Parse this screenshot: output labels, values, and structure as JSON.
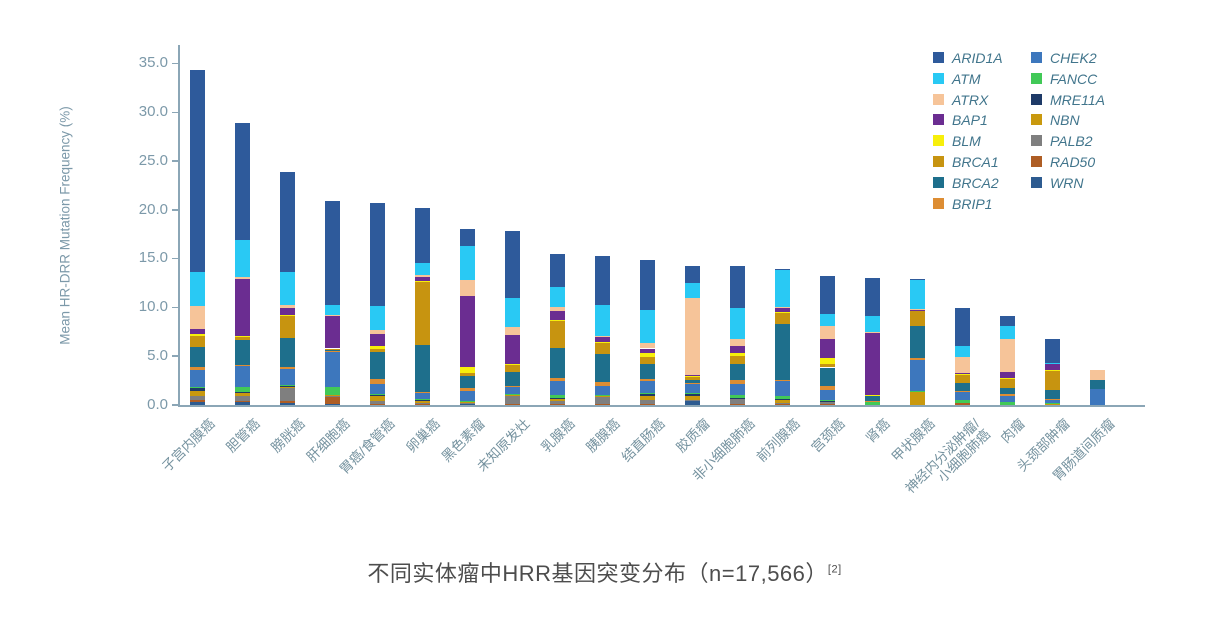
{
  "caption": {
    "text": "不同实体瘤中HRR基因突变分布（n=17,566）",
    "citation": "[2]"
  },
  "axis": {
    "ylabel": "Mean HR-DRR Mutation Frequency (%)",
    "ytick_labels": [
      "0.0",
      "5.0",
      "10.0",
      "15.0",
      "20.0",
      "25.0",
      "30.0",
      "35.0"
    ]
  },
  "colors": {
    "axis_line": "#8ba6b6",
    "tick_text": "#7c99a9",
    "category_text": "#75929f",
    "legend_text": "#41758c",
    "caption_text": "#4d4d4d"
  },
  "chart_data": {
    "type": "bar",
    "stacked": true,
    "title": "不同实体瘤中HRR基因突变分布（n=17,566）[2]",
    "xlabel": "",
    "ylabel": "Mean HR-DRR Mutation Frequency (%)",
    "ylim": [
      0,
      35
    ],
    "yticks": [
      0,
      5,
      10,
      15,
      20,
      25,
      30,
      35
    ],
    "grid": false,
    "legend_position": "top-right",
    "legend_columns": [
      [
        "ARID1A",
        "ATM",
        "ATRX",
        "BAP1",
        "BLM",
        "BRCA1",
        "BRCA2",
        "BRIP1"
      ],
      [
        "CHEK2",
        "FANCC",
        "MRE11A",
        "NBN",
        "PALB2",
        "RAD50",
        "WRN"
      ]
    ],
    "genes": [
      {
        "name": "ARID1A",
        "color": "#2e5a9b"
      },
      {
        "name": "ATM",
        "color": "#29c9f4"
      },
      {
        "name": "ATRX",
        "color": "#f6c499"
      },
      {
        "name": "BAP1",
        "color": "#6b2d91"
      },
      {
        "name": "BLM",
        "color": "#f7ef0b"
      },
      {
        "name": "BRCA1",
        "color": "#c79410"
      },
      {
        "name": "BRCA2",
        "color": "#1e6f8c"
      },
      {
        "name": "BRIP1",
        "color": "#dd8d33"
      },
      {
        "name": "CHEK2",
        "color": "#3d77bd"
      },
      {
        "name": "FANCC",
        "color": "#41c957"
      },
      {
        "name": "MRE11A",
        "color": "#1e3a67"
      },
      {
        "name": "NBN",
        "color": "#c9990e"
      },
      {
        "name": "PALB2",
        "color": "#7f7f7f"
      },
      {
        "name": "RAD50",
        "color": "#ae5d24"
      },
      {
        "name": "WRN",
        "color": "#2d5b90"
      }
    ],
    "categories": [
      "子宫内膜癌",
      "胆管癌",
      "膀胱癌",
      "肝细胞癌",
      "胃癌/食管癌",
      "卵巢癌",
      "黑色素瘤",
      "未知原发灶",
      "乳腺癌",
      "胰腺癌",
      "结直肠癌",
      "胶质瘤",
      "非小细胞肺癌",
      "前列腺癌",
      "宫颈癌",
      "肾癌",
      "甲状腺癌",
      "神经内分泌肿瘤/\n小细胞肺癌",
      "肉瘤",
      "头颈部肿瘤",
      "胃肠道间质瘤"
    ],
    "totals": [
      34.3,
      28.9,
      23.9,
      20.9,
      20.7,
      20.2,
      18.0,
      17.9,
      15.5,
      15.3,
      14.9,
      14.3,
      14.2,
      14.0,
      13.2,
      13.0,
      12.9,
      9.9,
      9.1,
      6.7,
      3.6
    ],
    "series": [
      {
        "name": "ARID1A",
        "values": [
          20.7,
          12.0,
          10.3,
          10.7,
          10.6,
          5.6,
          1.7,
          6.9,
          3.4,
          5.0,
          5.1,
          1.8,
          4.3,
          0.05,
          3.9,
          3.9,
          0.05,
          3.85,
          1.0,
          2.4,
          0
        ]
      },
      {
        "name": "ATM",
        "values": [
          3.5,
          3.8,
          3.4,
          1.0,
          2.5,
          1.3,
          3.5,
          3.0,
          2.0,
          3.2,
          3.4,
          1.5,
          3.2,
          3.9,
          1.2,
          1.7,
          3.0,
          1.2,
          1.3,
          0.05,
          0
        ]
      },
      {
        "name": "ATRX",
        "values": [
          2.3,
          0.25,
          0.3,
          0.15,
          0.4,
          0.15,
          1.7,
          0.8,
          0.5,
          0.1,
          0.6,
          7.9,
          0.7,
          0.1,
          1.4,
          0.1,
          0.1,
          1.65,
          3.45,
          0.05,
          1.05
        ]
      },
      {
        "name": "BAP1",
        "values": [
          0.6,
          5.8,
          0.7,
          3.3,
          1.2,
          0.45,
          7.2,
          3.0,
          0.85,
          0.55,
          0.45,
          0.1,
          0.75,
          0.4,
          1.9,
          6.3,
          0.1,
          0.05,
          0.6,
          0.65,
          0
        ]
      },
      {
        "name": "BLM",
        "values": [
          0.15,
          0.1,
          0.1,
          0,
          0.3,
          0.05,
          0.7,
          0.1,
          0.05,
          0.05,
          0.4,
          0.05,
          0.25,
          0.05,
          0.65,
          0.05,
          0.05,
          0.05,
          0.05,
          0.05,
          0
        ]
      },
      {
        "name": "BRCA1",
        "values": [
          1.1,
          0.35,
          2.3,
          0.15,
          0.3,
          6.5,
          0.3,
          0.7,
          2.8,
          1.2,
          0.7,
          0.4,
          0.8,
          1.2,
          0.35,
          0.05,
          1.5,
          0.9,
          1.0,
          2.0,
          0
        ]
      },
      {
        "name": "BRCA2",
        "values": [
          2.1,
          2.5,
          2.9,
          0.15,
          2.8,
          4.8,
          1.2,
          1.4,
          3.1,
          2.8,
          1.55,
          0.25,
          1.7,
          5.7,
          1.9,
          0.5,
          3.3,
          0.85,
          0.6,
          0.9,
          0.9
        ]
      },
      {
        "name": "BRIP1",
        "values": [
          0.3,
          0.1,
          0.3,
          0.1,
          0.5,
          0.1,
          0.3,
          0.1,
          0.3,
          0.5,
          0.25,
          0.05,
          0.35,
          0.1,
          0.45,
          0.05,
          0.2,
          0.05,
          0.2,
          0.05,
          0
        ]
      },
      {
        "name": "CHEK2",
        "values": [
          1.75,
          2.2,
          1.55,
          3.6,
          1.0,
          0.65,
          1.0,
          0.75,
          1.5,
          0.85,
          1.2,
          1.0,
          1.2,
          1.6,
          1.0,
          0.05,
          3.2,
          0.8,
          0.55,
          0.35,
          1.6
        ]
      },
      {
        "name": "FANCC",
        "values": [
          0.1,
          0.5,
          0.1,
          0.8,
          0.1,
          0.05,
          0.05,
          0.05,
          0.25,
          0.05,
          0.05,
          0.05,
          0.25,
          0.25,
          0.05,
          0.3,
          0.05,
          0.35,
          0.3,
          0.05,
          0
        ]
      },
      {
        "name": "MRE11A",
        "values": [
          0.3,
          0.1,
          0.1,
          0,
          0.1,
          0.05,
          0.05,
          0.05,
          0.05,
          0.05,
          0.25,
          0.3,
          0.05,
          0.05,
          0.05,
          0,
          0.05,
          0,
          0,
          0,
          0
        ]
      },
      {
        "name": "NBN",
        "values": [
          0.55,
          0.3,
          0.15,
          0.1,
          0.5,
          0.3,
          0.05,
          0.05,
          0.3,
          0.05,
          0.45,
          0.35,
          0.05,
          0.4,
          0.05,
          0,
          1.3,
          0,
          0,
          0.15,
          0
        ]
      },
      {
        "name": "PALB2",
        "values": [
          0.4,
          0.55,
          1.35,
          0.1,
          0.3,
          0.05,
          0.2,
          0.85,
          0.25,
          0.75,
          0.35,
          0.05,
          0.5,
          0.05,
          0.2,
          0,
          0,
          0,
          0,
          0,
          0
        ]
      },
      {
        "name": "RAD50",
        "values": [
          0.2,
          0.1,
          0.15,
          0.65,
          0.05,
          0.05,
          0,
          0.05,
          0.05,
          0.05,
          0.05,
          0.05,
          0.05,
          0.05,
          0.05,
          0,
          0,
          0.15,
          0,
          0,
          0
        ]
      },
      {
        "name": "WRN",
        "values": [
          0.25,
          0.25,
          0.2,
          0.1,
          0.05,
          0.05,
          0.05,
          0.05,
          0.05,
          0.05,
          0.05,
          0.4,
          0.05,
          0.05,
          0.05,
          0,
          0,
          0,
          0,
          0,
          0
        ]
      }
    ]
  }
}
